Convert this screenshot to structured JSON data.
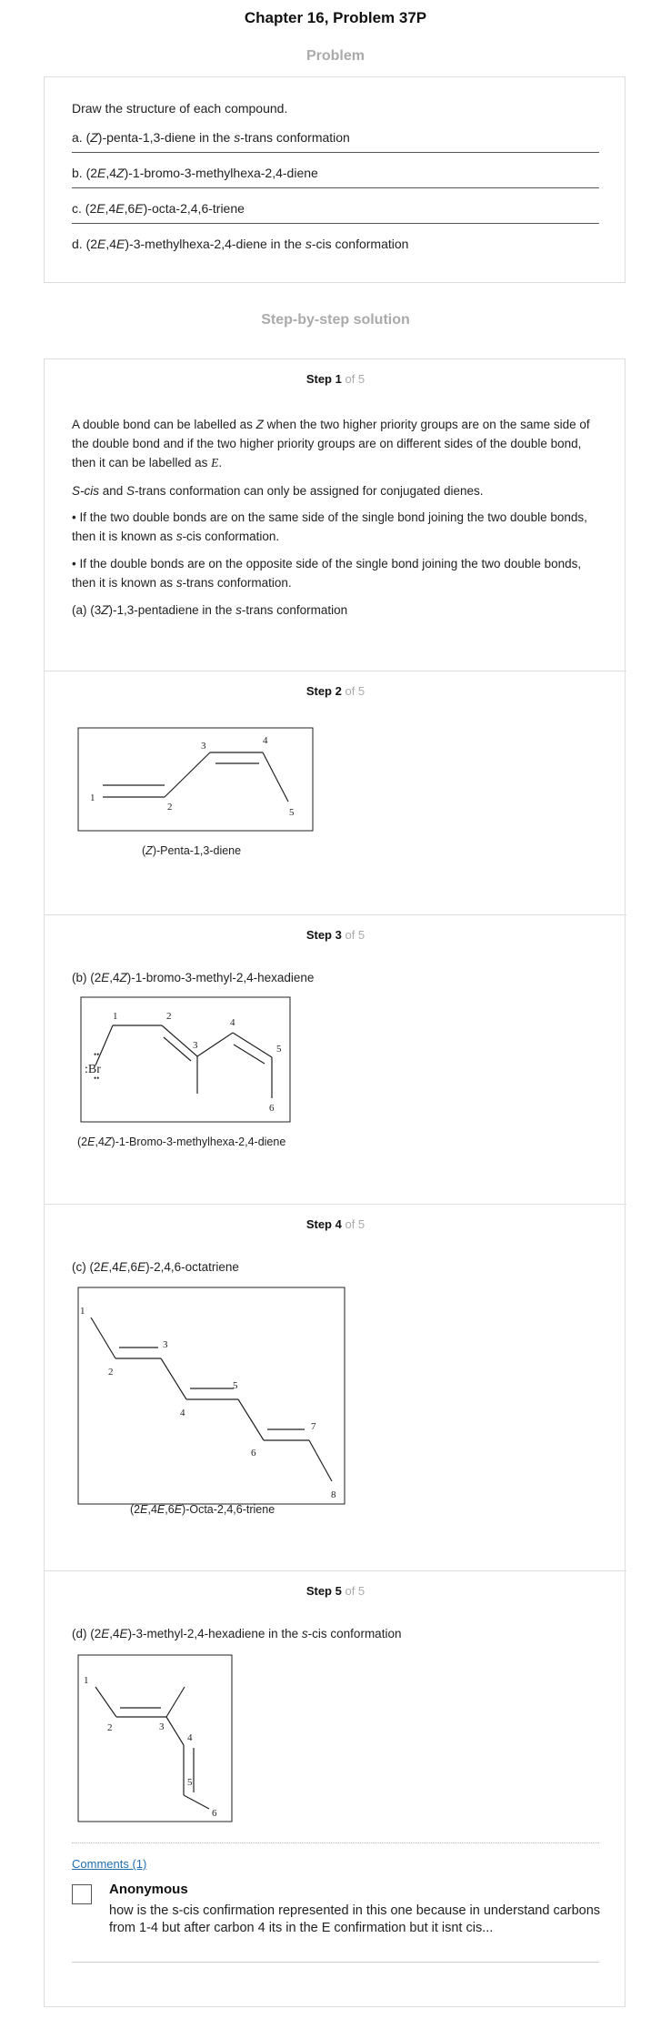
{
  "page": {
    "title": "Chapter 16, Problem 37P",
    "problem_heading": "Problem",
    "solution_heading": "Step-by-step solution"
  },
  "problem": {
    "intro": "Draw the structure of each compound.",
    "items": [
      {
        "prefix": "a. (",
        "italic1": "Z",
        "mid1": ")-penta-1,3-diene in the ",
        "italic2": "s",
        "mid2": "-trans conformation"
      },
      {
        "prefix": "b. (2",
        "italic1": "E",
        "mid1": ",4",
        "italic2": "Z",
        "mid2": ")-1-bromo-3-methylhexa-2,4-diene"
      },
      {
        "prefix": "c. (2",
        "italic1": "E",
        "mid1": ",4",
        "italic2": "E",
        "mid2": ",6",
        "italic3": "E",
        "mid3": ")-octa-2,4,6-triene"
      },
      {
        "prefix": "d. (2",
        "italic1": "E",
        "mid1": ",4",
        "italic2": "E",
        "mid2": ")-3-methylhexa-2,4-diene in the ",
        "italic3": "s",
        "mid3": "-cis conformation"
      }
    ]
  },
  "steps": [
    {
      "label": "Step 1",
      "of": "of 5"
    },
    {
      "label": "Step 2",
      "of": "of 5"
    },
    {
      "label": "Step 3",
      "of": "of 5"
    },
    {
      "label": "Step 4",
      "of": "of 5"
    },
    {
      "label": "Step 5",
      "of": "of 5"
    }
  ],
  "step1": {
    "p1a": "A double bond can be labelled as ",
    "p1b": "Z",
    "p1c": " when the two higher priority groups are on the same side of the double bond and if the two higher priority groups are on different sides of the double bond, then it can be labelled as ",
    "p1d": "E",
    "p1e": ".",
    "p2a": "S-cis",
    "p2b": " and ",
    "p2c": "S",
    "p2d": "-trans conformation can only be assigned for conjugated dienes.",
    "p3a": "• If the two double bonds are on the same side of the single bond joining the two double bonds, then it is known as ",
    "p3b": "s",
    "p3c": "-cis conformation.",
    "p4a": "• If the double bonds are on the opposite side of the single bond joining the two double bonds, then it is known as ",
    "p4b": "s",
    "p4c": "-trans conformation.",
    "p5a": "(a) (3",
    "p5b": "Z",
    "p5c": ")-1,3-pentadiene in the ",
    "p5d": "s",
    "p5e": "-trans conformation"
  },
  "step2": {
    "atoms": [
      "1",
      "2",
      "3",
      "4",
      "5"
    ],
    "cap_a": "(",
    "cap_b": "Z",
    "cap_c": ")-Penta-1,3-diene"
  },
  "step3": {
    "intro_a": "(b) (2",
    "intro_b": "E",
    "intro_c": ",4",
    "intro_d": "Z",
    "intro_e": ")-1-bromo-3-methyl-2,4-hexadiene",
    "atoms": [
      "1",
      "2",
      "3",
      "4",
      "5",
      "6"
    ],
    "br": ":Br",
    "cap_a": "(2",
    "cap_b": "E",
    "cap_c": ",4",
    "cap_d": "Z",
    "cap_e": ")-1-Bromo-3-methylhexa-2,4-diene"
  },
  "step4": {
    "intro_a": "(c) (2",
    "intro_b": "E",
    "intro_c": ",4",
    "intro_d": "E",
    "intro_e": ",6",
    "intro_f": "E",
    "intro_g": ")-2,4,6-octatriene",
    "atoms": [
      "1",
      "2",
      "3",
      "4",
      "5",
      "6",
      "7",
      "8"
    ],
    "cap_a": "(2",
    "cap_b": "E",
    "cap_c": ",4",
    "cap_d": "E",
    "cap_e": ",6",
    "cap_f": "E",
    "cap_g": ")-Octa-2,4,6-triene"
  },
  "step5": {
    "intro_a": "(d) (2",
    "intro_b": "E",
    "intro_c": ",4",
    "intro_d": "E",
    "intro_e": ")-3-methyl-2,4-hexadiene in the ",
    "intro_f": "s",
    "intro_g": "-cis conformation",
    "atoms": [
      "1",
      "2",
      "3",
      "4",
      "5",
      "6"
    ]
  },
  "comments": {
    "link": "Comments (1)",
    "author": "Anonymous",
    "text": "how is the s-cis confirmation represented in this one because in understand carbons from 1-4 but after carbon 4 its in the E confirmation but it isnt cis..."
  }
}
